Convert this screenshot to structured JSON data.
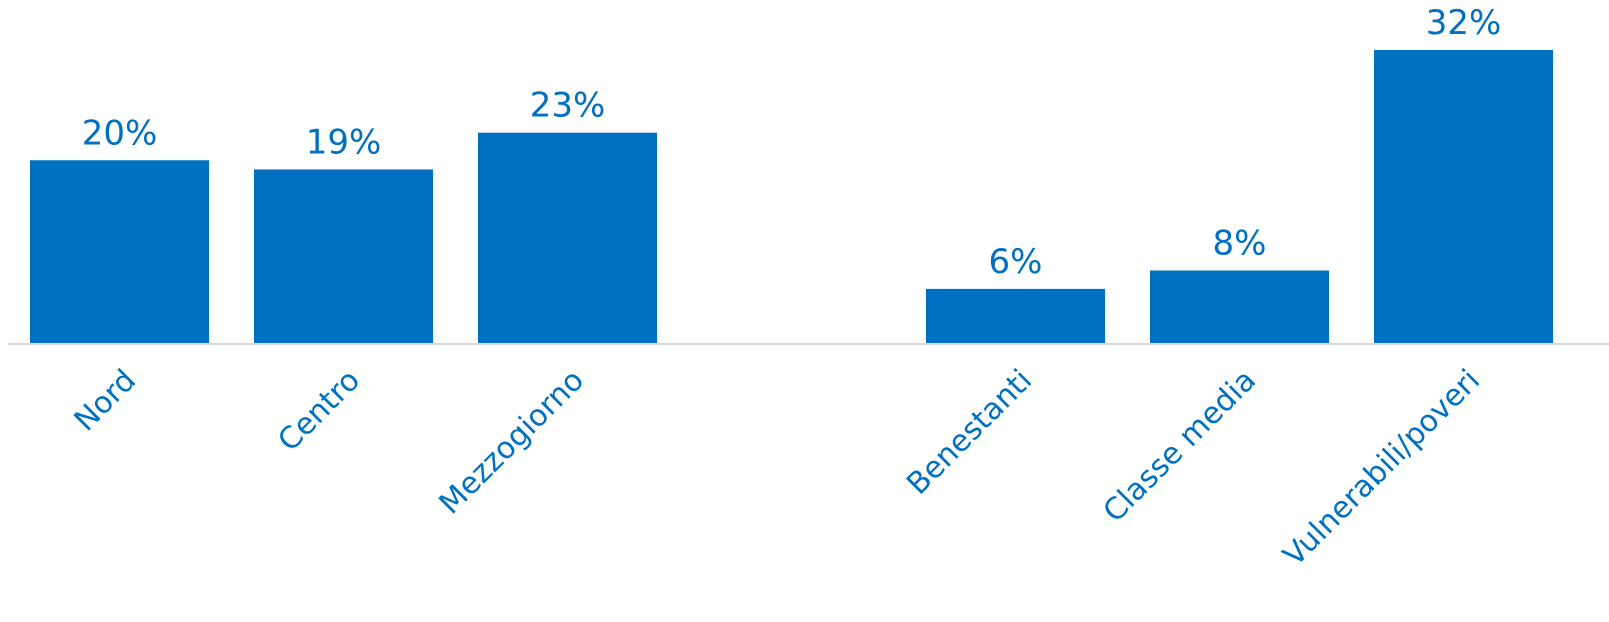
{
  "chart_data": {
    "type": "bar",
    "categories": [
      "Nord",
      "Centro",
      "Mezzogiorno",
      "",
      "Benestanti",
      "Classe media",
      "Vulnerabili/poveri"
    ],
    "values": [
      20,
      19,
      23,
      null,
      6,
      8,
      32
    ],
    "value_labels": [
      "20%",
      "19%",
      "23%",
      "",
      "6%",
      "8%",
      "32%"
    ],
    "unit": "%",
    "title": "",
    "xlabel": "",
    "ylabel": "",
    "ylim": [
      0,
      32
    ],
    "grid": false,
    "legend": "none",
    "bar_color": "#0070C0",
    "label_color": "#0070C0",
    "axis_color": "#d9d9d9"
  }
}
